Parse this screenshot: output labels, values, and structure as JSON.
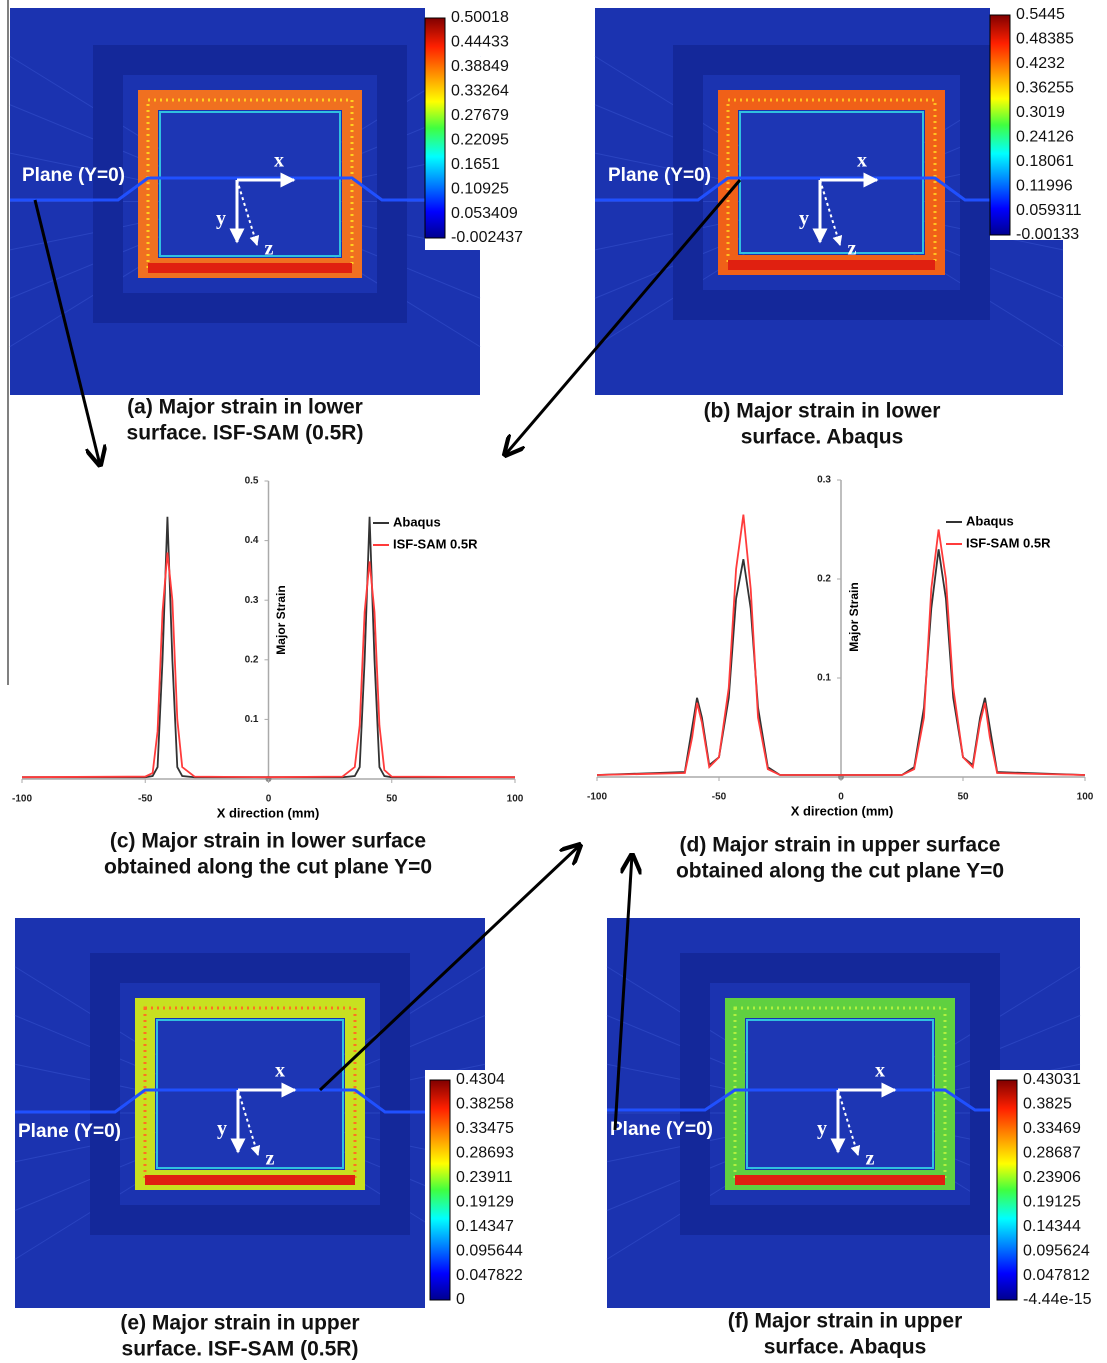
{
  "panels": [
    {
      "caption": [
        "(a) Major strain in lower",
        "surface. ISF-SAM (0.5R)"
      ],
      "plane_label": "Plane (Y=0)",
      "axis_labels": [
        "x",
        "y",
        "z"
      ],
      "colorbar": [
        "0.50018",
        "0.44433",
        "0.38849",
        "0.33264",
        "0.27679",
        "0.22095",
        "0.1651",
        "0.10925",
        "0.053409",
        "-0.002437"
      ]
    },
    {
      "caption": [
        "(b) Major strain in lower",
        "surface. Abaqus"
      ],
      "plane_label": "Plane (Y=0)",
      "axis_labels": [
        "x",
        "y",
        "z"
      ],
      "colorbar": [
        "0.5445",
        "0.48385",
        "0.4232",
        "0.36255",
        "0.3019",
        "0.24126",
        "0.18061",
        "0.11996",
        "0.059311",
        "-0.00133"
      ]
    },
    {
      "caption": [
        "(e) Major strain in upper",
        "surface. ISF-SAM (0.5R)"
      ],
      "plane_label": "Plane (Y=0)",
      "axis_labels": [
        "x",
        "y",
        "z"
      ],
      "colorbar": [
        "0.4304",
        "0.38258",
        "0.33475",
        "0.28693",
        "0.23911",
        "0.19129",
        "0.14347",
        "0.095644",
        "0.047822",
        "0"
      ]
    },
    {
      "caption": [
        "(f) Major strain in upper",
        "surface. Abaqus"
      ],
      "plane_label": "Plane (Y=0)",
      "axis_labels": [
        "x",
        "y",
        "z"
      ],
      "colorbar": [
        "0.43031",
        "0.3825",
        "0.33469",
        "0.28687",
        "0.23906",
        "0.19125",
        "0.14344",
        "0.095624",
        "0.047812",
        "-4.44e-15"
      ]
    }
  ],
  "chart_data": [
    {
      "type": "line",
      "caption": [
        "(c) Major strain in lower surface",
        "obtained along the cut plane Y=0"
      ],
      "xlabel": "X direction (mm)",
      "ylabel": "Major Strain",
      "xlim": [
        -100,
        100
      ],
      "ylim": [
        0,
        0.5
      ],
      "xticks": [
        -100,
        -50,
        0,
        50,
        100
      ],
      "yticks": [
        0.1,
        0.2,
        0.3,
        0.4,
        0.5
      ],
      "x": [
        -100,
        -50,
        -47,
        -45,
        -43,
        -41,
        -39,
        -37,
        -35,
        -30,
        0,
        30,
        35,
        37,
        39,
        41,
        43,
        45,
        47,
        50,
        100
      ],
      "series": [
        {
          "name": "Abaqus",
          "color": "#333333",
          "values": [
            0.003,
            0.003,
            0.005,
            0.02,
            0.2,
            0.44,
            0.2,
            0.02,
            0.005,
            0.003,
            0.003,
            0.003,
            0.005,
            0.02,
            0.2,
            0.44,
            0.2,
            0.02,
            0.005,
            0.003,
            0.003
          ]
        },
        {
          "name": "ISF-SAM 0.5R",
          "color": "#ff3b3b",
          "values": [
            0.003,
            0.004,
            0.01,
            0.08,
            0.28,
            0.38,
            0.3,
            0.1,
            0.02,
            0.004,
            0.003,
            0.004,
            0.02,
            0.09,
            0.28,
            0.365,
            0.28,
            0.09,
            0.015,
            0.004,
            0.003
          ]
        }
      ]
    },
    {
      "type": "line",
      "caption": [
        "(d) Major strain in upper surface",
        "obtained along the cut plane Y=0"
      ],
      "xlabel": "X direction (mm)",
      "ylabel": "Major Strain",
      "xlim": [
        -100,
        100
      ],
      "ylim": [
        0,
        0.3
      ],
      "xticks": [
        -100,
        -50,
        0,
        50,
        100
      ],
      "yticks": [
        0.1,
        0.2,
        0.3
      ],
      "x": [
        -100,
        -64,
        -61,
        -59,
        -57,
        -54,
        -50,
        -46,
        -43,
        -40,
        -37,
        -34,
        -30,
        -25,
        0,
        25,
        30,
        34,
        37,
        40,
        43,
        46,
        50,
        54,
        57,
        59,
        61,
        64,
        100
      ],
      "series": [
        {
          "name": "Abaqus",
          "color": "#333333",
          "values": [
            0.002,
            0.005,
            0.05,
            0.08,
            0.06,
            0.012,
            0.02,
            0.08,
            0.18,
            0.22,
            0.17,
            0.07,
            0.01,
            0.002,
            0.002,
            0.002,
            0.01,
            0.07,
            0.17,
            0.23,
            0.18,
            0.08,
            0.02,
            0.012,
            0.06,
            0.08,
            0.05,
            0.005,
            0.002
          ]
        },
        {
          "name": "ISF-SAM 0.5R",
          "color": "#ff3b3b",
          "values": [
            0.002,
            0.004,
            0.04,
            0.075,
            0.055,
            0.01,
            0.02,
            0.09,
            0.21,
            0.265,
            0.19,
            0.06,
            0.008,
            0.002,
            0.002,
            0.002,
            0.008,
            0.06,
            0.19,
            0.25,
            0.2,
            0.09,
            0.02,
            0.01,
            0.055,
            0.075,
            0.04,
            0.004,
            0.002
          ]
        }
      ]
    }
  ]
}
